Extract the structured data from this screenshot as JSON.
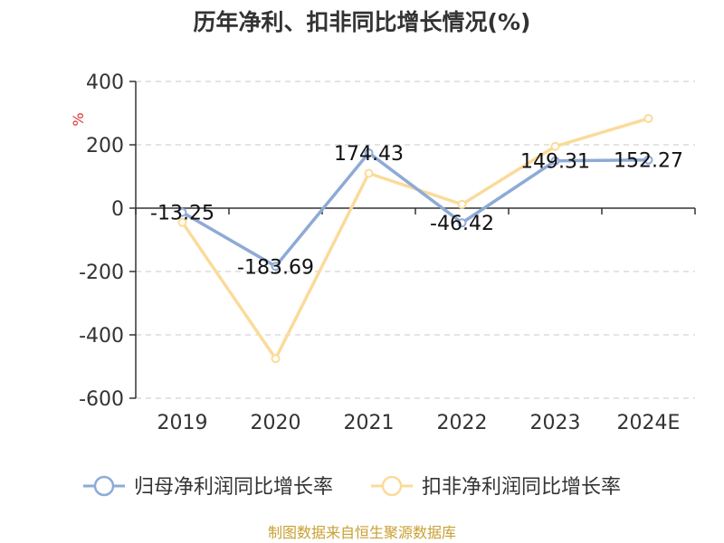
{
  "chart_data": {
    "type": "line",
    "title": "历年净利、扣非同比增长情况(%)",
    "ylabel": "%",
    "xlabel": "",
    "categories": [
      "2019",
      "2020",
      "2021",
      "2022",
      "2023",
      "2024E"
    ],
    "ylim": [
      -600,
      400
    ],
    "yticks": [
      400,
      200,
      0,
      -200,
      -400,
      -600
    ],
    "grid": true,
    "legend_position": "bottom",
    "series": [
      {
        "name": "归母净利润同比增长率",
        "values": [
          -13.25,
          -183.69,
          174.43,
          -46.42,
          149.31,
          152.27
        ],
        "labels": [
          "-13.25",
          "-183.69",
          "174.43",
          "-46.42",
          "149.31",
          "152.27"
        ],
        "color": "#8eaad6"
      },
      {
        "name": "扣非净利润同比增长率",
        "values": [
          -45,
          -475,
          110,
          12,
          195,
          283
        ],
        "color": "#fadb9a"
      }
    ],
    "source": "制图数据来自恒生聚源数据库"
  }
}
